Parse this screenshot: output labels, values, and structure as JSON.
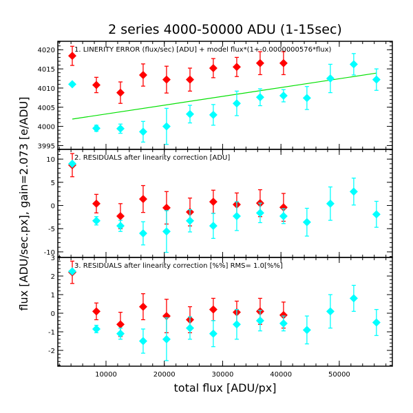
{
  "chart_data": {
    "type": "scatter",
    "title": "2 series 4000-50000 ADU (1-15sec)",
    "xlabel": "total flux [ADU/px]",
    "ylabel": "flux [ADU/sec.px], gain=2.073 [e/ADU]",
    "xlim": [
      1740,
      59100
    ],
    "xticks": [
      10000,
      20000,
      30000,
      40000,
      50000
    ],
    "xtick_labels": [
      "10000",
      "20000",
      "30000",
      "40000",
      "50000"
    ],
    "x_minor_step": 2000,
    "colors": {
      "series1": "#ff0000",
      "series2": "#00ffff",
      "model": "#00e000"
    },
    "panels": [
      {
        "annotation": "1. LINERITY ERROR (flux/sec) [ADU] + model flux*(1+-0.0000000576*flux)",
        "ylim": [
          3994,
          4022.2
        ],
        "yticks": [
          3995,
          4000,
          4005,
          4010,
          4015,
          4020
        ],
        "ytick_labels": [
          "3995",
          "4000",
          "4005",
          "4010",
          "4015",
          "4020"
        ],
        "y_minor_step": 1,
        "series": [
          {
            "name": "series1",
            "x": [
              4220,
              8350,
              12480,
              16370,
              20380,
              24400,
              28400,
              32420,
              36430,
              40440
            ],
            "y": [
              4018.4,
              4010.8,
              4008.8,
              4013.4,
              4012.2,
              4012.2,
              4015.2,
              4015.5,
              4016.5,
              4016.5
            ],
            "err": [
              2.5,
              2.0,
              2.8,
              2.9,
              3.5,
              3.0,
              2.5,
              2.5,
              3.0,
              3.0
            ]
          },
          {
            "name": "series2",
            "x": [
              4220,
              8350,
              12480,
              16370,
              20380,
              24400,
              28400,
              32420,
              36430,
              40440,
              44450,
              48470,
              52480,
              56370
            ],
            "y": [
              4011.0,
              3999.5,
              3999.4,
              3998.6,
              4000.0,
              4003.2,
              4003.0,
              4006.0,
              4007.6,
              4008.0,
              4007.4,
              4012.5,
              4016.2,
              4012.2
            ],
            "err": [
              0,
              0.8,
              1.2,
              2.7,
              4.7,
              2.3,
              2.7,
              3.2,
              2.2,
              1.6,
              3.0,
              3.7,
              2.8,
              2.8
            ]
          }
        ],
        "model_line": {
          "x": [
            4220,
            56370
          ],
          "y": [
            4001.9,
            4013.9
          ]
        }
      },
      {
        "annotation": "2. RESIDUALS after linearity correction [ADU]",
        "ylim": [
          -11.2,
          12.1
        ],
        "yticks": [
          -10,
          -5,
          0,
          5,
          10
        ],
        "ytick_labels": [
          "-10",
          "-5",
          "0",
          "5",
          "10"
        ],
        "y_minor_step": 1,
        "series": [
          {
            "name": "series1",
            "x": [
              4220,
              8350,
              12480,
              16370,
              20380,
              24400,
              28400,
              32420,
              36430,
              40440
            ],
            "y": [
              8.7,
              0.4,
              -2.3,
              1.4,
              -0.5,
              -1.4,
              0.8,
              0.2,
              0.5,
              -0.4
            ],
            "err": [
              2.5,
              2.0,
              2.7,
              2.9,
              3.5,
              3.0,
              2.5,
              2.5,
              2.9,
              3.0
            ]
          },
          {
            "name": "series2",
            "x": [
              4220,
              8350,
              12480,
              16370,
              20380,
              24400,
              28400,
              32420,
              36430,
              40440,
              44450,
              48470,
              52480,
              56370
            ],
            "y": [
              9.0,
              -3.3,
              -4.4,
              -6.0,
              -5.6,
              -3.3,
              -4.4,
              -2.3,
              -1.6,
              -2.3,
              -3.6,
              0.4,
              3.0,
              -1.9
            ],
            "err": [
              0,
              0.9,
              1.2,
              2.5,
              4.5,
              2.4,
              2.7,
              3.1,
              2.1,
              1.6,
              3.0,
              3.6,
              2.9,
              2.8
            ]
          }
        ]
      },
      {
        "annotation": "3. RESIDUALS after linearity correction [%%] RMS=  1.0[%%]",
        "ylim": [
          -2.85,
          3.0
        ],
        "yticks": [
          -2,
          -1,
          0,
          1,
          2,
          3
        ],
        "ytick_labels": [
          "-2",
          "-1",
          "0",
          "1",
          "2",
          "3"
        ],
        "y_minor_step": 0.2,
        "series": [
          {
            "name": "series1",
            "x": [
              4220,
              8350,
              12480,
              16370,
              20380,
              24400,
              28400,
              32420,
              36430,
              40440
            ],
            "y": [
              2.2,
              0.1,
              -0.6,
              0.35,
              -0.15,
              -0.35,
              0.2,
              0.05,
              0.1,
              -0.1
            ],
            "err": [
              0.6,
              0.45,
              0.65,
              0.7,
              0.9,
              0.7,
              0.6,
              0.6,
              0.7,
              0.7
            ]
          },
          {
            "name": "series2",
            "x": [
              4220,
              8350,
              12480,
              16370,
              20380,
              24400,
              28400,
              32420,
              36430,
              40440,
              44450,
              48470,
              52480,
              56370
            ],
            "y": [
              2.25,
              -0.85,
              -1.1,
              -1.5,
              -1.4,
              -0.8,
              -1.1,
              -0.6,
              -0.4,
              -0.55,
              -0.9,
              0.1,
              0.8,
              -0.5
            ],
            "err": [
              0,
              0.2,
              0.3,
              0.65,
              1.15,
              0.6,
              0.7,
              0.8,
              0.55,
              0.4,
              0.75,
              0.9,
              0.7,
              0.7
            ]
          }
        ]
      }
    ]
  }
}
